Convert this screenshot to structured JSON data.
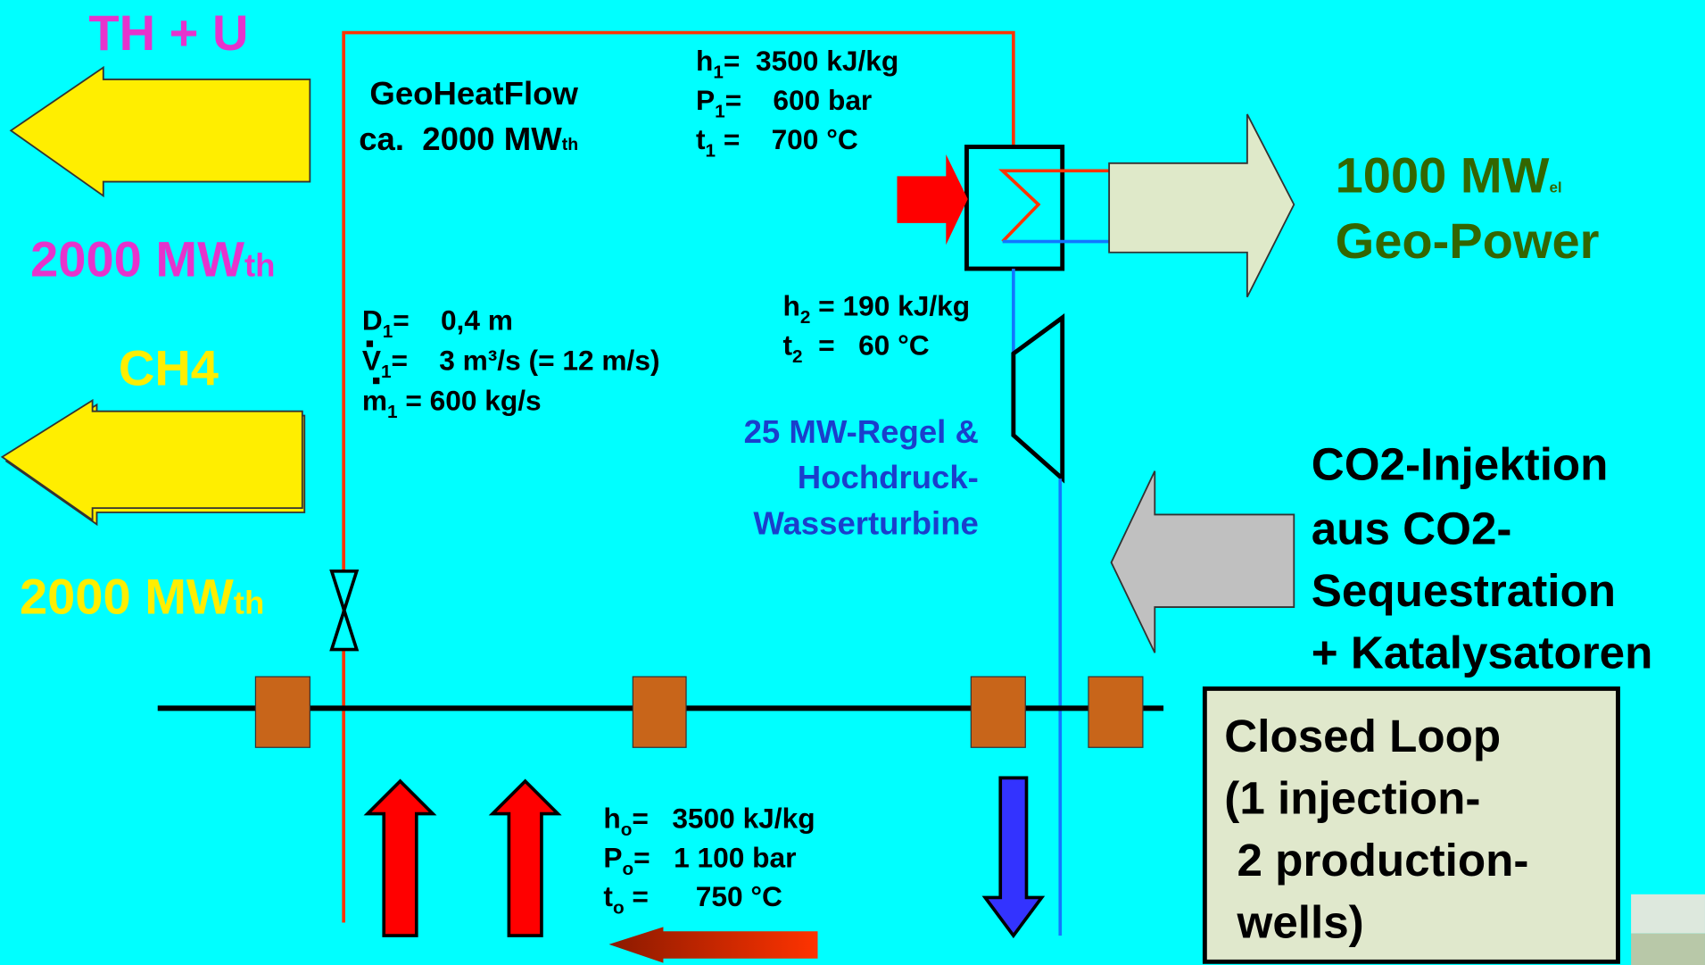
{
  "left": {
    "th_u": "TH + U",
    "th_u_power": {
      "main": "2000 MW",
      "sub": "th"
    },
    "ch4": "CH4",
    "ch4_power": {
      "main": "2000 MW",
      "sub": "th"
    }
  },
  "geoheatflow": {
    "line1": "GeoHeatFlow",
    "line2": {
      "main": "ca.  2000 MW",
      "sub": "th"
    }
  },
  "state1": [
    {
      "base": "h",
      "sub": "1",
      "rest": "=  3500 kJ/kg"
    },
    {
      "base": "P",
      "sub": "1",
      "rest": "=    600 bar"
    },
    {
      "base": "t",
      "sub": "1",
      "rest": " =    700 °C"
    }
  ],
  "state2": [
    {
      "base": "h",
      "sub": "2",
      "rest": " = 190 kJ/kg"
    },
    {
      "base": "t",
      "sub": "2",
      "rest": "  =   60 °C"
    }
  ],
  "pipe": [
    {
      "base": "D",
      "sub": "1",
      "rest": "=    0,4 m"
    },
    {
      "base": "V",
      "sub": "1",
      "rest": "=    3 m³/s (= 12 m/s)"
    },
    {
      "base": "m",
      "sub": "1",
      "rest": " = 600 kg/s"
    }
  ],
  "turbine": [
    "25 MW-Regel &",
    "Hochdruck-",
    "Wasserturbine"
  ],
  "output": {
    "line1": {
      "main": "1000 MW",
      "sub": "el"
    },
    "line2": "Geo-Power"
  },
  "co2": [
    "CO2-Injektion",
    "aus CO2-",
    "Sequestration",
    "+ Katalysatoren"
  ],
  "state0": [
    {
      "base": "h",
      "sub": "o",
      "rest": "=   3500 kJ/kg"
    },
    {
      "base": "P",
      "sub": "o",
      "rest": "=   1 100 bar"
    },
    {
      "base": "t",
      "sub": "o",
      "rest": " =      750 °C"
    }
  ],
  "closed_loop": [
    "Closed Loop",
    "(1 injection-",
    " 2 production-",
    " wells)"
  ]
}
